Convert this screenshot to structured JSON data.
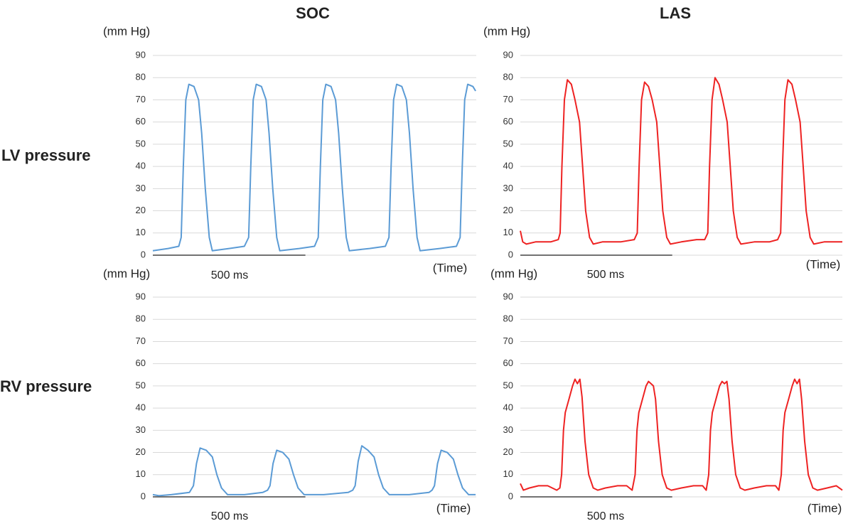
{
  "column_titles": [
    "SOC",
    "LAS"
  ],
  "row_titles": [
    "LV pressure",
    "RV pressure"
  ],
  "chart_data": [
    {
      "type": "line",
      "ylabel": "(mm Hg)",
      "xlabel": "(Time)",
      "scale_bar": {
        "value": 500,
        "label": "500 ms"
      },
      "color": "#5b9bd5",
      "xlim": [
        0,
        1060
      ],
      "ylim": [
        0,
        90
      ],
      "yticks": [
        0,
        10,
        20,
        30,
        40,
        50,
        60,
        70,
        80,
        90
      ],
      "grid": true,
      "x": [
        0,
        50,
        85,
        93,
        100,
        108,
        118,
        135,
        150,
        160,
        172,
        185,
        195,
        250,
        300,
        314,
        321,
        329,
        339,
        356,
        371,
        381,
        393,
        406,
        416,
        480,
        530,
        542,
        549,
        557,
        567,
        584,
        599,
        609,
        621,
        634,
        644,
        710,
        762,
        774,
        781,
        789,
        799,
        816,
        831,
        841,
        853,
        866,
        876,
        940,
        995,
        1007,
        1014,
        1022,
        1032,
        1049,
        1058
      ],
      "values": [
        2,
        3,
        4,
        8,
        40,
        70,
        77,
        76,
        70,
        55,
        30,
        8,
        2,
        3,
        4,
        8,
        40,
        70,
        77,
        76,
        70,
        55,
        30,
        8,
        2,
        3,
        4,
        8,
        40,
        70,
        77,
        76,
        70,
        55,
        30,
        8,
        2,
        3,
        4,
        8,
        40,
        70,
        77,
        76,
        70,
        55,
        30,
        8,
        2,
        3,
        4,
        8,
        40,
        70,
        77,
        76,
        74
      ]
    },
    {
      "type": "line",
      "ylabel": "(mm Hg)",
      "xlabel": "(Time)",
      "scale_bar": {
        "value": 500,
        "label": "500 ms"
      },
      "color": "#ee2222",
      "xlim": [
        0,
        1060
      ],
      "ylim": [
        0,
        90
      ],
      "yticks": [
        0,
        10,
        20,
        30,
        40,
        50,
        60,
        70,
        80,
        90
      ],
      "grid": true,
      "x": [
        0,
        8,
        20,
        50,
        100,
        125,
        131,
        137,
        145,
        155,
        168,
        180,
        195,
        205,
        215,
        228,
        240,
        270,
        330,
        375,
        385,
        391,
        399,
        409,
        422,
        434,
        449,
        459,
        469,
        482,
        494,
        530,
        580,
        607,
        617,
        623,
        631,
        641,
        654,
        666,
        681,
        691,
        701,
        714,
        726,
        770,
        820,
        847,
        857,
        863,
        871,
        881,
        894,
        906,
        921,
        931,
        941,
        954,
        966,
        1000,
        1040,
        1060
      ],
      "values": [
        11,
        6,
        5,
        6,
        6,
        7,
        10,
        40,
        70,
        79,
        77,
        70,
        60,
        40,
        20,
        8,
        5,
        6,
        6,
        7,
        10,
        40,
        70,
        78,
        76,
        70,
        60,
        40,
        20,
        8,
        5,
        6,
        7,
        7,
        10,
        40,
        70,
        80,
        77,
        70,
        60,
        40,
        20,
        8,
        5,
        6,
        6,
        7,
        10,
        40,
        70,
        79,
        77,
        70,
        60,
        40,
        20,
        8,
        5,
        6,
        6,
        6
      ]
    },
    {
      "type": "line",
      "ylabel": "(mm Hg)",
      "xlabel": "(Time)",
      "scale_bar": {
        "value": 500,
        "label": "500 ms"
      },
      "color": "#5b9bd5",
      "xlim": [
        0,
        1060
      ],
      "ylim": [
        0,
        90
      ],
      "yticks": [
        0,
        10,
        20,
        30,
        40,
        50,
        60,
        70,
        80,
        90
      ],
      "grid": true,
      "x": [
        0,
        20,
        60,
        120,
        133,
        143,
        155,
        175,
        195,
        210,
        225,
        245,
        300,
        360,
        376,
        384,
        394,
        406,
        426,
        446,
        461,
        476,
        496,
        560,
        640,
        655,
        663,
        673,
        685,
        705,
        725,
        740,
        755,
        775,
        840,
        905,
        915,
        923,
        933,
        945,
        965,
        985,
        1000,
        1015,
        1035,
        1058
      ],
      "values": [
        1,
        0.5,
        1,
        2,
        5,
        15,
        22,
        21,
        18,
        10,
        4,
        1,
        1,
        2,
        3,
        5,
        15,
        21,
        20,
        17,
        10,
        4,
        1,
        1,
        2,
        3,
        5,
        16,
        23,
        21,
        18,
        10,
        4,
        1,
        1,
        2,
        3,
        5,
        15,
        21,
        20,
        17,
        10,
        4,
        1,
        1
      ]
    },
    {
      "type": "line",
      "ylabel": "(mm Hg)",
      "xlabel": "(Time)",
      "scale_bar": {
        "value": 500,
        "label": "500 ms"
      },
      "color": "#ee2222",
      "xlim": [
        0,
        1060
      ],
      "ylim": [
        0,
        90
      ],
      "yticks": [
        0,
        10,
        20,
        30,
        40,
        50,
        60,
        70,
        80,
        90
      ],
      "grid": true,
      "x": [
        0,
        10,
        30,
        60,
        90,
        120,
        130,
        136,
        142,
        148,
        160,
        172,
        180,
        188,
        196,
        203,
        213,
        225,
        240,
        255,
        280,
        320,
        350,
        368,
        378,
        384,
        390,
        402,
        414,
        422,
        430,
        438,
        445,
        455,
        467,
        482,
        497,
        530,
        570,
        600,
        612,
        620,
        626,
        632,
        644,
        656,
        664,
        672,
        680,
        687,
        697,
        709,
        724,
        739,
        770,
        810,
        840,
        851,
        859,
        865,
        871,
        883,
        895,
        903,
        911,
        919,
        926,
        936,
        948,
        963,
        978,
        1010,
        1040,
        1060
      ],
      "values": [
        6,
        3,
        4,
        5,
        5,
        3,
        4,
        10,
        30,
        38,
        44,
        50,
        53,
        51,
        53,
        45,
        25,
        10,
        4,
        3,
        4,
        5,
        5,
        3,
        10,
        30,
        38,
        44,
        50,
        52,
        51,
        50,
        44,
        25,
        10,
        4,
        3,
        4,
        5,
        5,
        3,
        10,
        30,
        38,
        44,
        50,
        52,
        51,
        52,
        44,
        25,
        10,
        4,
        3,
        4,
        5,
        5,
        3,
        10,
        30,
        38,
        44,
        50,
        53,
        51,
        53,
        44,
        25,
        10,
        4,
        3,
        4,
        5,
        3
      ]
    }
  ]
}
